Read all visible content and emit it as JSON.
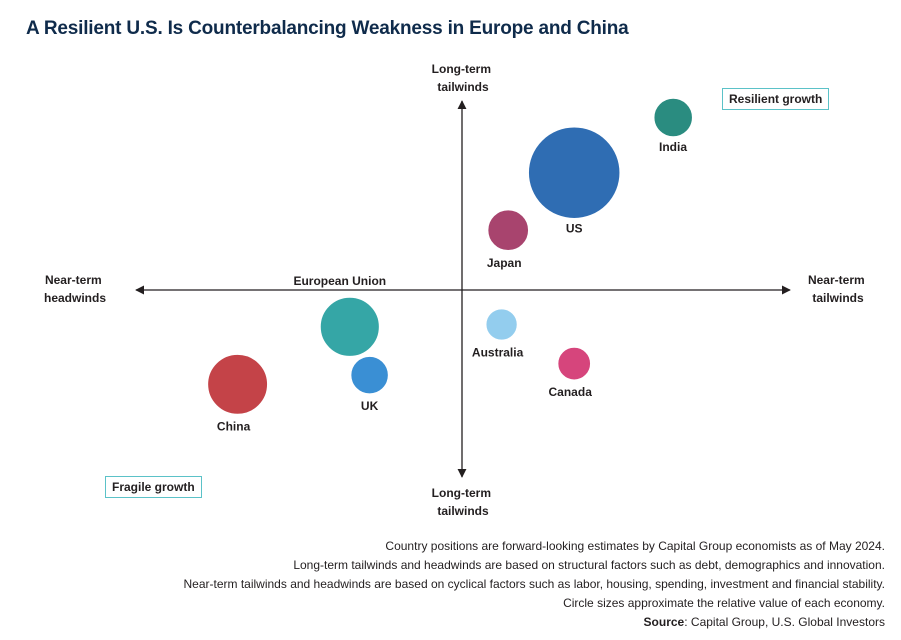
{
  "title": "A Resilient U.S. Is Counterbalancing Weakness in Europe and China",
  "axes": {
    "top_label": [
      "Long-term",
      "tailwinds"
    ],
    "bottom_label": [
      "Long-term",
      "tailwinds"
    ],
    "left_label": [
      "Near-term",
      "headwinds"
    ],
    "right_label": [
      "Near-term",
      "tailwinds"
    ]
  },
  "quadrants": {
    "top_right": "Resilient growth",
    "bottom_left": "Fragile growth"
  },
  "footnotes": [
    "Country positions are forward-looking estimates by Capital Group economists as of May 2024.",
    "Long-term tailwinds and headwinds are based on structural factors such as debt, demographics and innovation.",
    "Near-term tailwinds and headwinds are based on cyclical factors such as labor, housing, spending, investment and financial stability.",
    "Circle sizes approximate the relative value of each economy."
  ],
  "source": {
    "label": "Source",
    "text": ": Capital Group, U.S. Global Investors"
  },
  "chart_data": {
    "type": "scatter",
    "xlim": [
      -1,
      1
    ],
    "ylim": [
      -1,
      1
    ],
    "grid": false,
    "points": [
      {
        "name": "US",
        "x": 0.34,
        "y": 0.51,
        "size": 1.0,
        "color": "#2f6db3"
      },
      {
        "name": "India",
        "x": 0.64,
        "y": 0.75,
        "size": 0.18,
        "color": "#2a8c80"
      },
      {
        "name": "Japan",
        "x": 0.14,
        "y": 0.26,
        "size": 0.2,
        "color": "#a8446e"
      },
      {
        "name": "Australia",
        "x": 0.12,
        "y": -0.15,
        "size": 0.12,
        "color": "#93cdee"
      },
      {
        "name": "Canada",
        "x": 0.34,
        "y": -0.32,
        "size": 0.13,
        "color": "#d6457c"
      },
      {
        "name": "European Union",
        "x": -0.34,
        "y": -0.16,
        "size": 0.42,
        "color": "#35a6a6"
      },
      {
        "name": "UK",
        "x": -0.28,
        "y": -0.37,
        "size": 0.17,
        "color": "#3a8fd4"
      },
      {
        "name": "China",
        "x": -0.68,
        "y": -0.41,
        "size": 0.43,
        "color": "#c44348"
      }
    ]
  }
}
